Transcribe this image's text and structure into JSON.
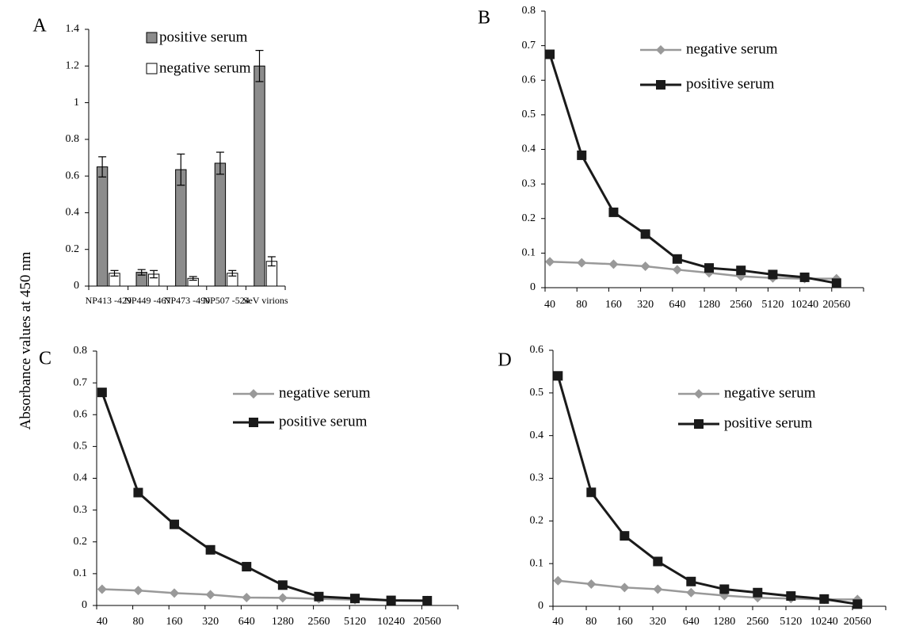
{
  "figure": {
    "ylabel": "Absorbance values  at 450 nm"
  },
  "colors": {
    "positive_bar": "#8c8c8c",
    "negative_bar": "#ffffff",
    "negative_line": "#999999",
    "positive_line": "#1a1a1a"
  },
  "chart_data": [
    {
      "panel": "A",
      "type": "bar",
      "categories": [
        "NP413 -429",
        "NP449 -467",
        "NP473 -490",
        "NP507 -524",
        "SeV virions"
      ],
      "series": [
        {
          "name": "positive serum",
          "values": [
            0.65,
            0.075,
            0.635,
            0.67,
            1.2
          ],
          "errors": [
            0.055,
            0.015,
            0.085,
            0.06,
            0.085
          ]
        },
        {
          "name": "negative serum",
          "values": [
            0.07,
            0.065,
            0.042,
            0.07,
            0.135
          ],
          "errors": [
            0.015,
            0.02,
            0.01,
            0.015,
            0.025
          ]
        }
      ],
      "ylim": [
        0,
        1.4
      ],
      "yticks": [
        "0",
        "0.2",
        "0.4",
        "0.6",
        "0.8",
        "1",
        "1.2",
        "1.4"
      ],
      "legend_position": "top-left"
    },
    {
      "panel": "B",
      "type": "line",
      "x": [
        "40",
        "80",
        "160",
        "320",
        "640",
        "1280",
        "2560",
        "5120",
        "10240",
        "20560"
      ],
      "series": [
        {
          "name": "negative serum",
          "marker": "diamond",
          "values": [
            0.075,
            0.072,
            0.068,
            0.062,
            0.052,
            0.043,
            0.033,
            0.028,
            0.026,
            0.026
          ]
        },
        {
          "name": "positive serum",
          "marker": "square",
          "values": [
            0.675,
            0.383,
            0.218,
            0.155,
            0.083,
            0.057,
            0.05,
            0.038,
            0.03,
            0.013
          ]
        }
      ],
      "ylim": [
        0,
        0.8
      ],
      "yticks": [
        "0",
        "0.1",
        "0.2",
        "0.3",
        "0.4",
        "0.5",
        "0.6",
        "0.7",
        "0.8"
      ],
      "legend_position": "top-right"
    },
    {
      "panel": "C",
      "type": "line",
      "x": [
        "40",
        "80",
        "160",
        "320",
        "640",
        "1280",
        "2560",
        "5120",
        "10240",
        "20560"
      ],
      "series": [
        {
          "name": "negative serum",
          "marker": "diamond",
          "values": [
            0.051,
            0.047,
            0.039,
            0.034,
            0.025,
            0.024,
            0.021,
            0.018,
            0.016,
            0.016
          ]
        },
        {
          "name": "positive serum",
          "marker": "square",
          "values": [
            0.67,
            0.355,
            0.255,
            0.175,
            0.122,
            0.064,
            0.028,
            0.022,
            0.016,
            0.015
          ]
        }
      ],
      "ylim": [
        0,
        0.8
      ],
      "yticks": [
        "0",
        "0.1",
        "0.2",
        "0.3",
        "0.4",
        "0.5",
        "0.6",
        "0.7",
        "0.8"
      ],
      "legend_position": "top-right"
    },
    {
      "panel": "D",
      "type": "line",
      "x": [
        "40",
        "80",
        "160",
        "320",
        "640",
        "1280",
        "2560",
        "5120",
        "10240",
        "20560"
      ],
      "series": [
        {
          "name": "negative serum",
          "marker": "diamond",
          "values": [
            0.06,
            0.052,
            0.044,
            0.04,
            0.032,
            0.025,
            0.02,
            0.018,
            0.016,
            0.016
          ]
        },
        {
          "name": "positive serum",
          "marker": "square",
          "values": [
            0.54,
            0.267,
            0.165,
            0.105,
            0.058,
            0.04,
            0.032,
            0.024,
            0.017,
            0.005
          ]
        }
      ],
      "ylim": [
        0,
        0.6
      ],
      "yticks": [
        "0",
        "0.1",
        "0.2",
        "0.3",
        "0.4",
        "0.5",
        "0.6"
      ],
      "legend_position": "top-right"
    }
  ]
}
